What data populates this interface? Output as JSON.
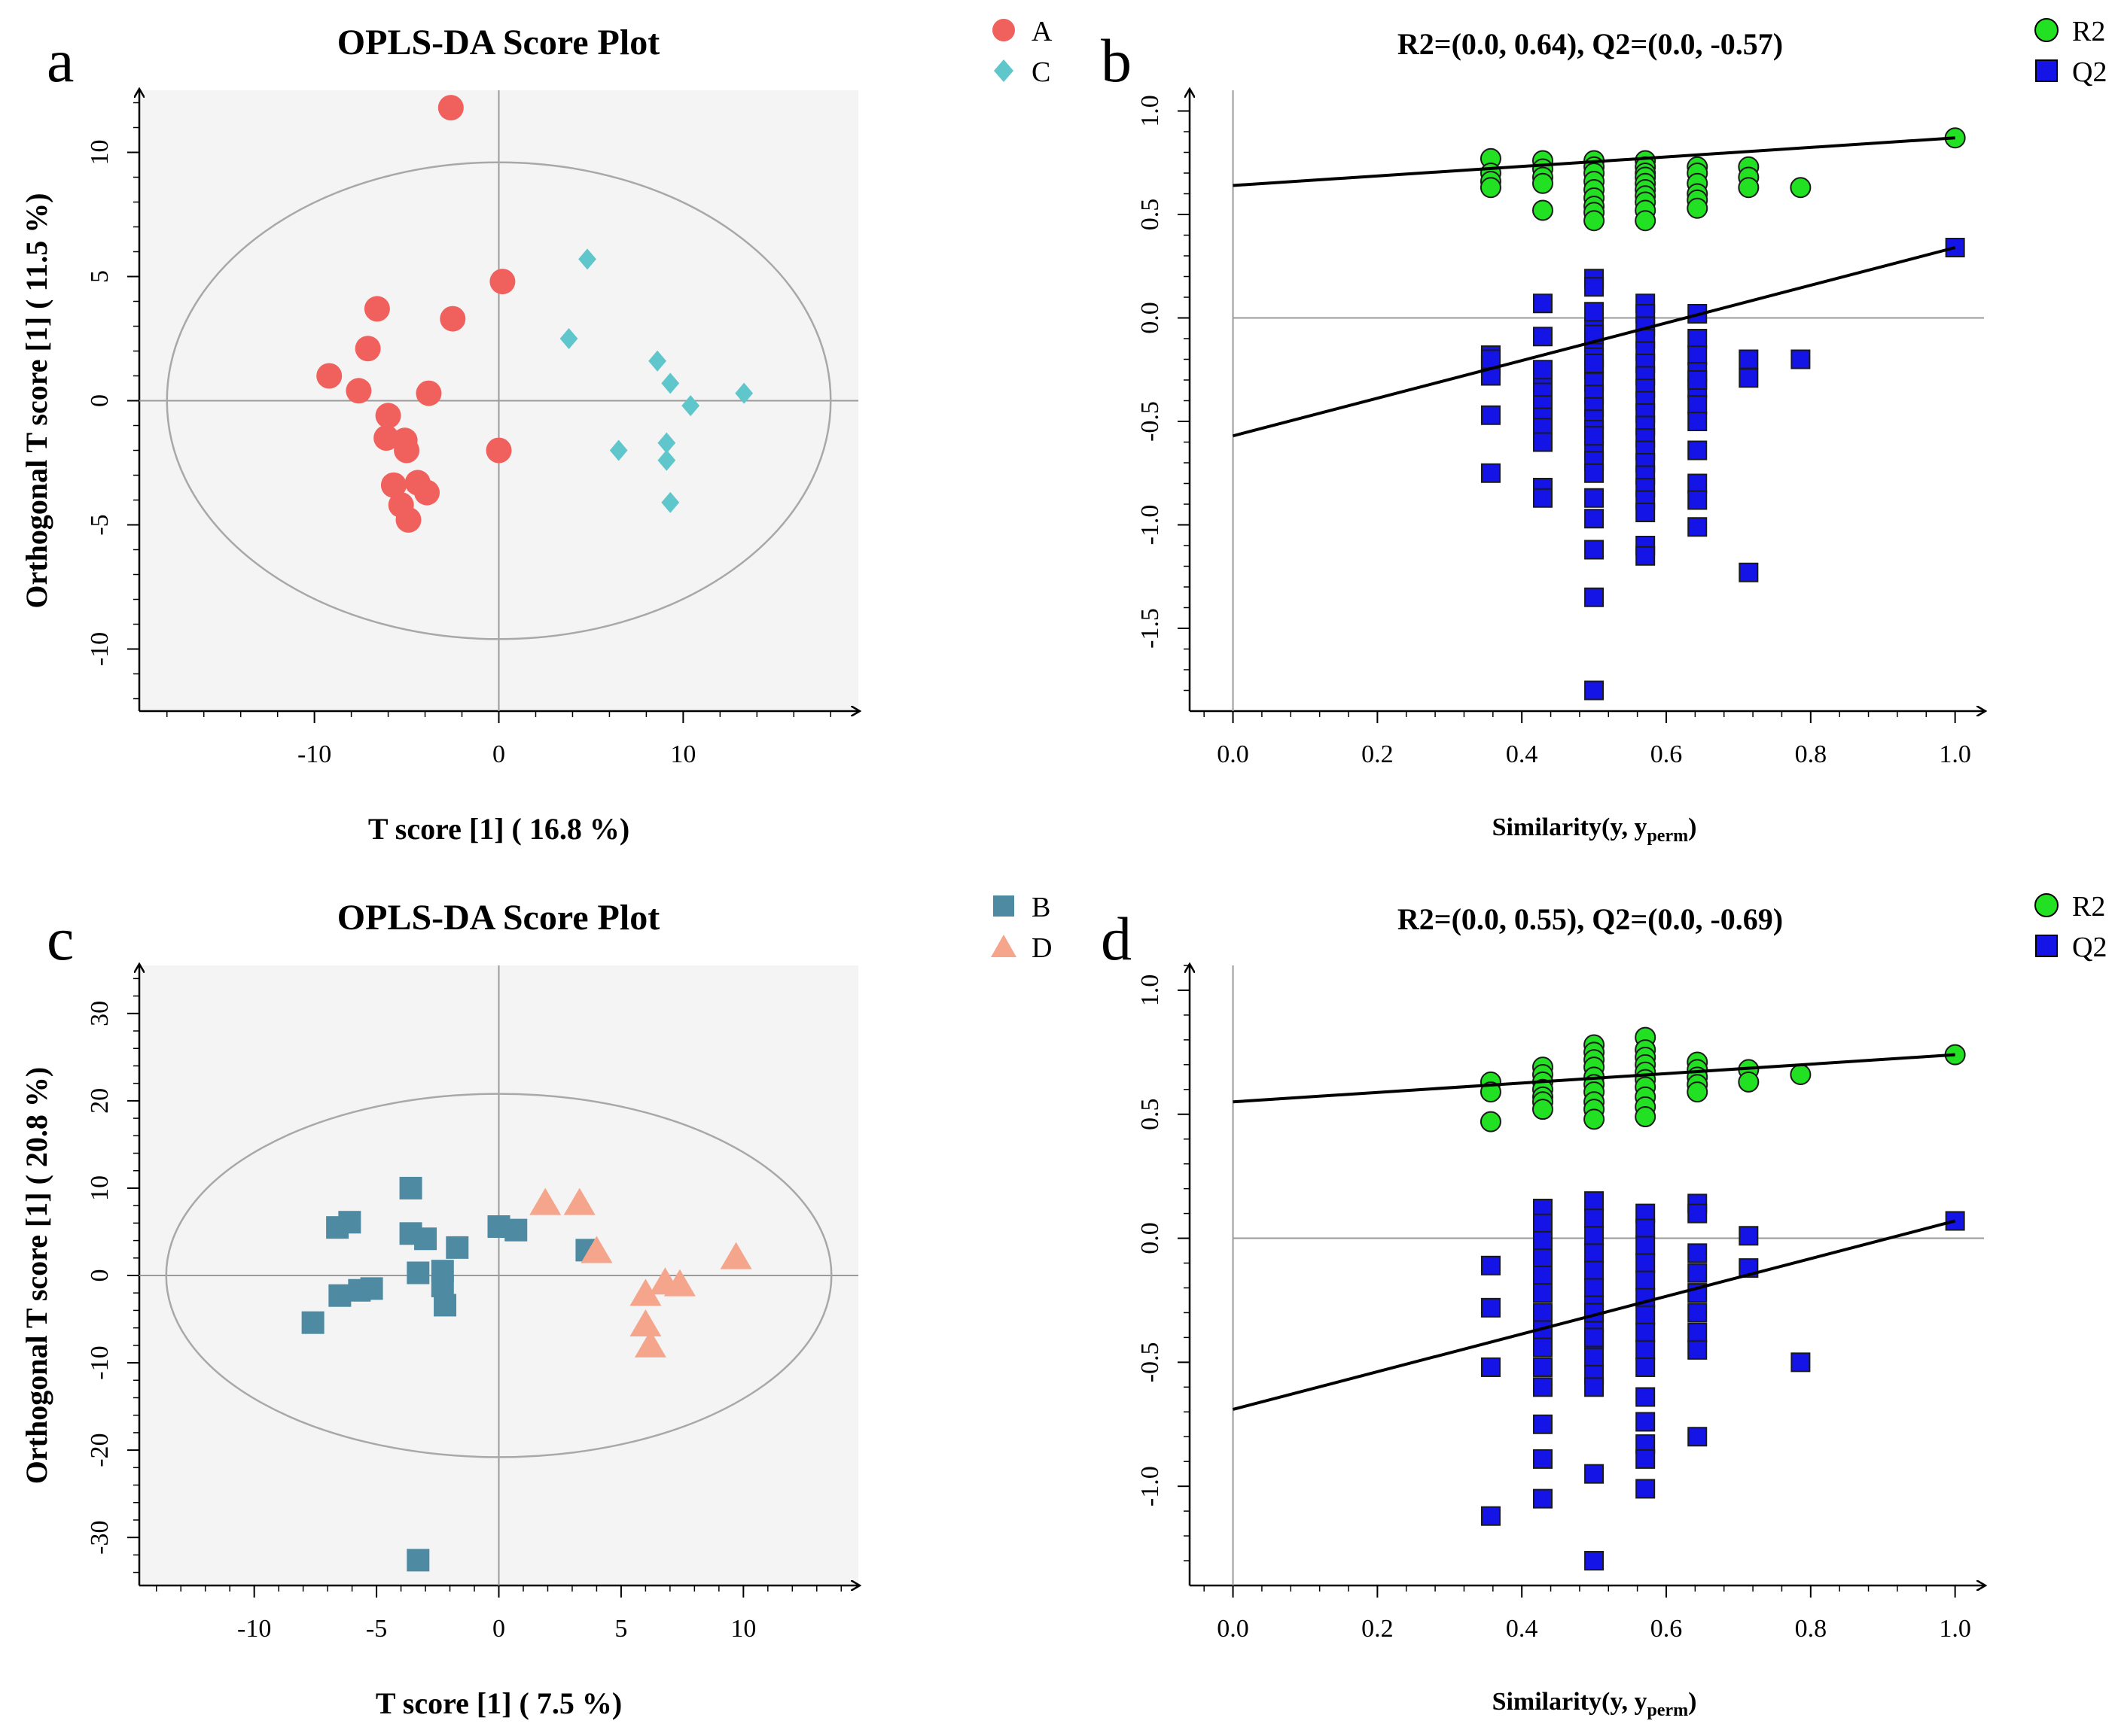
{
  "colors": {
    "A": "#f0605c",
    "C": "#5fc6cc",
    "B": "#4f8aa3",
    "D": "#f5a58c",
    "R2": "#22e022",
    "Q2": "#1414e6",
    "plot_bg": "#f4f4f4",
    "ellipse": "#a8a8a8"
  },
  "chart_data": [
    {
      "panel": "a",
      "type": "scatter",
      "title": "OPLS-DA Score Plot",
      "xlabel": "T score [1] ( 16.8 %)",
      "ylabel": "Orthogonal T score [1] ( 11.5 %)",
      "xlim": [
        -19.5,
        19.5
      ],
      "ylim": [
        -12.5,
        12.5
      ],
      "xticks": [
        -10,
        0,
        10
      ],
      "xticklabels": [
        "-10",
        "0",
        "10"
      ],
      "yticks": [
        -10,
        -5,
        0,
        5,
        10
      ],
      "yticklabels": [
        "-10",
        "-5",
        "0",
        "5",
        "10"
      ],
      "ellipse": {
        "rx": 18.0,
        "ry": 9.6
      },
      "series": [
        {
          "name": "A",
          "marker": "circle",
          "x": [
            -2.6,
            0.2,
            -6.6,
            -2.5,
            -7.1,
            -9.2,
            -7.6,
            -3.8,
            -6.0,
            -6.1,
            -5.1,
            -5.0,
            0.0,
            -5.7,
            -4.4,
            -3.9,
            -5.3,
            -4.9
          ],
          "y": [
            11.8,
            4.8,
            3.7,
            3.3,
            2.1,
            1.0,
            0.4,
            0.3,
            -0.6,
            -1.5,
            -1.6,
            -2.0,
            -2.0,
            -3.4,
            -3.3,
            -3.7,
            -4.2,
            -4.8
          ]
        },
        {
          "name": "C",
          "marker": "diamond",
          "x": [
            4.8,
            3.8,
            8.6,
            9.3,
            10.4,
            13.3,
            6.5,
            9.1,
            9.1,
            9.3
          ],
          "y": [
            5.7,
            2.5,
            1.6,
            0.7,
            -0.2,
            0.3,
            -2.0,
            -1.7,
            -2.4,
            -4.1
          ]
        }
      ]
    },
    {
      "panel": "b",
      "type": "scatter",
      "title": "R2=(0.0, 0.64), Q2=(0.0, -0.57)",
      "xlabel": "Similarity(y, y",
      "xlabel_sub": "perm",
      "xlabel_end": ")",
      "ylabel": "",
      "xlim": [
        -0.06,
        1.04
      ],
      "ylim": [
        -1.9,
        1.1
      ],
      "xticks": [
        0.0,
        0.2,
        0.4,
        0.6,
        0.8,
        1.0
      ],
      "xticklabels": [
        "0.0",
        "0.2",
        "0.4",
        "0.6",
        "0.8",
        "1.0"
      ],
      "yticks": [
        -1.5,
        -1.0,
        -0.5,
        0.0,
        0.5,
        1.0
      ],
      "yticklabels": [
        "-1.5",
        "-1.0",
        "-0.5",
        "0.0",
        "0.5",
        "1.0"
      ],
      "zero_line": 0.0,
      "fit_lines": [
        {
          "series": "R2",
          "x": [
            0.0,
            1.0
          ],
          "y": [
            0.64,
            0.87
          ]
        },
        {
          "series": "Q2",
          "x": [
            0.0,
            1.0
          ],
          "y": [
            -0.57,
            0.34
          ]
        }
      ],
      "series": [
        {
          "name": "R2",
          "marker": "circle",
          "x": [
            0.357,
            0.357,
            0.357,
            0.357,
            0.429,
            0.429,
            0.429,
            0.429,
            0.429,
            0.5,
            0.5,
            0.5,
            0.5,
            0.5,
            0.5,
            0.5,
            0.5,
            0.5,
            0.571,
            0.571,
            0.571,
            0.571,
            0.571,
            0.571,
            0.571,
            0.571,
            0.571,
            0.571,
            0.643,
            0.643,
            0.643,
            0.643,
            0.643,
            0.643,
            0.714,
            0.714,
            0.714,
            0.786,
            1.0
          ],
          "y": [
            0.77,
            0.7,
            0.66,
            0.63,
            0.76,
            0.72,
            0.68,
            0.65,
            0.52,
            0.76,
            0.73,
            0.7,
            0.66,
            0.62,
            0.58,
            0.54,
            0.51,
            0.47,
            0.76,
            0.73,
            0.7,
            0.68,
            0.65,
            0.62,
            0.59,
            0.56,
            0.52,
            0.47,
            0.73,
            0.7,
            0.65,
            0.6,
            0.57,
            0.53,
            0.73,
            0.68,
            0.63,
            0.63,
            0.87
          ]
        },
        {
          "name": "Q2",
          "marker": "square",
          "x": [
            0.357,
            0.357,
            0.357,
            0.357,
            0.357,
            0.357,
            0.429,
            0.429,
            0.429,
            0.429,
            0.429,
            0.429,
            0.429,
            0.429,
            0.429,
            0.429,
            0.429,
            0.5,
            0.5,
            0.5,
            0.5,
            0.5,
            0.5,
            0.5,
            0.5,
            0.5,
            0.5,
            0.5,
            0.5,
            0.5,
            0.5,
            0.5,
            0.5,
            0.5,
            0.5,
            0.5,
            0.5,
            0.5,
            0.5,
            0.5,
            0.571,
            0.571,
            0.571,
            0.571,
            0.571,
            0.571,
            0.571,
            0.571,
            0.571,
            0.571,
            0.571,
            0.571,
            0.571,
            0.571,
            0.571,
            0.571,
            0.571,
            0.571,
            0.571,
            0.571,
            0.643,
            0.643,
            0.643,
            0.643,
            0.643,
            0.643,
            0.643,
            0.643,
            0.643,
            0.643,
            0.643,
            0.643,
            0.714,
            0.714,
            0.714,
            0.786,
            1.0
          ],
          "y": [
            -0.18,
            -0.23,
            -0.28,
            -0.47,
            -0.75,
            -0.2,
            0.07,
            -0.09,
            -0.3,
            -0.36,
            -0.42,
            -0.48,
            -0.53,
            -0.6,
            -0.82,
            -0.87,
            -0.25,
            0.19,
            0.15,
            -0.05,
            -0.12,
            -0.19,
            -0.25,
            -0.31,
            -0.37,
            -0.43,
            -0.49,
            -0.54,
            -0.64,
            -0.69,
            -0.75,
            -0.87,
            -0.97,
            -1.12,
            -1.35,
            -1.8,
            -0.57,
            0.03,
            -0.08,
            -0.22,
            0.07,
            0.02,
            -0.04,
            -0.1,
            -0.16,
            -0.22,
            -0.28,
            -0.34,
            -0.4,
            -0.46,
            -0.52,
            -0.58,
            -0.64,
            -0.7,
            -0.76,
            -0.82,
            -0.88,
            -0.94,
            -1.1,
            -1.15,
            0.02,
            -0.1,
            -0.18,
            -0.26,
            -0.34,
            -0.42,
            -0.5,
            -0.64,
            -0.8,
            -0.88,
            -1.01,
            -0.3,
            -0.2,
            -0.29,
            -1.23,
            -0.2,
            0.34
          ]
        }
      ]
    },
    {
      "panel": "c",
      "type": "scatter",
      "title": "OPLS-DA Score Plot",
      "xlabel": "T score [1] ( 7.5 %)",
      "ylabel": "Orthogonal T score [1] ( 20.8 %)",
      "xlim": [
        -14.7,
        14.7
      ],
      "ylim": [
        -35.5,
        35.5
      ],
      "xticks": [
        -10,
        -5,
        0,
        5,
        10
      ],
      "xticklabels": [
        "-10",
        "-5",
        "0",
        "5",
        "10"
      ],
      "yticks": [
        -30,
        -20,
        -10,
        0,
        10,
        20,
        30
      ],
      "yticklabels": [
        "-30",
        "-20",
        "-10",
        "0",
        "10",
        "20",
        "30"
      ],
      "ellipse": {
        "rx": 13.6,
        "ry": 20.8
      },
      "series": [
        {
          "name": "B",
          "marker": "square",
          "x": [
            -3.6,
            -6.6,
            -6.1,
            -3.6,
            -3.0,
            0.0,
            0.7,
            -1.7,
            3.6,
            -3.3,
            -2.3,
            -2.3,
            -5.2,
            -5.7,
            -6.5,
            -7.6,
            -2.2,
            -3.3
          ],
          "y": [
            10.0,
            5.5,
            6.1,
            4.8,
            4.2,
            5.6,
            5.2,
            3.2,
            2.9,
            0.3,
            0.5,
            -1.2,
            -1.5,
            -1.7,
            -2.3,
            -5.4,
            -3.4,
            -32.6
          ]
        },
        {
          "name": "D",
          "marker": "triangle",
          "x": [
            1.9,
            3.3,
            4.0,
            9.7,
            6.8,
            7.4,
            6.0,
            6.0,
            6.2
          ],
          "y": [
            8.3,
            8.3,
            2.8,
            2.1,
            -0.8,
            -1.0,
            -2.1,
            -5.6,
            -8.0
          ]
        }
      ]
    },
    {
      "panel": "d",
      "type": "scatter",
      "title": "R2=(0.0, 0.55), Q2=(0.0, -0.69)",
      "xlabel": "Similarity(y, y",
      "xlabel_sub": "perm",
      "xlabel_end": ")",
      "ylabel": "",
      "xlim": [
        -0.06,
        1.04
      ],
      "ylim": [
        -1.4,
        1.1
      ],
      "xticks": [
        0.0,
        0.2,
        0.4,
        0.6,
        0.8,
        1.0
      ],
      "xticklabels": [
        "0.0",
        "0.2",
        "0.4",
        "0.6",
        "0.8",
        "1.0"
      ],
      "yticks": [
        -1.0,
        -0.5,
        0.0,
        0.5,
        1.0
      ],
      "yticklabels": [
        "-1.0",
        "-0.5",
        "0.0",
        "0.5",
        "1.0"
      ],
      "zero_line": 0.0,
      "fit_lines": [
        {
          "series": "R2",
          "x": [
            0.0,
            1.0
          ],
          "y": [
            0.55,
            0.74
          ]
        },
        {
          "series": "Q2",
          "x": [
            0.0,
            1.0
          ],
          "y": [
            -0.69,
            0.07
          ]
        }
      ],
      "series": [
        {
          "name": "R2",
          "marker": "circle",
          "x": [
            0.357,
            0.357,
            0.357,
            0.429,
            0.429,
            0.429,
            0.429,
            0.429,
            0.429,
            0.429,
            0.5,
            0.5,
            0.5,
            0.5,
            0.5,
            0.5,
            0.5,
            0.5,
            0.5,
            0.5,
            0.571,
            0.571,
            0.571,
            0.571,
            0.571,
            0.571,
            0.571,
            0.571,
            0.571,
            0.571,
            0.643,
            0.643,
            0.643,
            0.643,
            0.643,
            0.714,
            0.714,
            0.786,
            1.0
          ],
          "y": [
            0.63,
            0.59,
            0.47,
            0.69,
            0.66,
            0.63,
            0.6,
            0.57,
            0.55,
            0.52,
            0.78,
            0.75,
            0.72,
            0.69,
            0.65,
            0.62,
            0.59,
            0.55,
            0.52,
            0.48,
            0.81,
            0.76,
            0.73,
            0.7,
            0.67,
            0.64,
            0.61,
            0.57,
            0.53,
            0.49,
            0.71,
            0.68,
            0.65,
            0.62,
            0.59,
            0.68,
            0.63,
            0.66,
            0.74
          ]
        },
        {
          "name": "Q2",
          "marker": "square",
          "x": [
            0.357,
            0.357,
            0.357,
            0.357,
            0.429,
            0.429,
            0.429,
            0.429,
            0.429,
            0.429,
            0.429,
            0.429,
            0.429,
            0.429,
            0.429,
            0.429,
            0.429,
            0.429,
            0.5,
            0.5,
            0.5,
            0.5,
            0.5,
            0.5,
            0.5,
            0.5,
            0.5,
            0.5,
            0.5,
            0.5,
            0.5,
            0.5,
            0.5,
            0.5,
            0.571,
            0.571,
            0.571,
            0.571,
            0.571,
            0.571,
            0.571,
            0.571,
            0.571,
            0.571,
            0.571,
            0.571,
            0.571,
            0.571,
            0.571,
            0.643,
            0.643,
            0.643,
            0.643,
            0.643,
            0.643,
            0.643,
            0.643,
            0.643,
            0.714,
            0.714,
            0.786,
            1.0
          ],
          "y": [
            -0.11,
            -0.28,
            -0.52,
            -1.12,
            0.12,
            0.06,
            -0.01,
            -0.08,
            -0.15,
            -0.22,
            -0.3,
            -0.37,
            -0.44,
            -0.52,
            -0.75,
            -0.89,
            -1.05,
            -0.6,
            0.15,
            0.08,
            0.01,
            -0.06,
            -0.13,
            -0.2,
            -0.27,
            -0.34,
            -0.41,
            -0.48,
            -0.55,
            -0.6,
            -0.95,
            -1.3,
            -0.4,
            -0.3,
            0.1,
            0.04,
            -0.03,
            -0.1,
            -0.17,
            -0.24,
            -0.31,
            -0.38,
            -0.45,
            -0.52,
            -0.64,
            -0.74,
            -0.83,
            -0.89,
            -1.01,
            0.14,
            0.1,
            -0.06,
            -0.14,
            -0.22,
            -0.3,
            -0.38,
            -0.45,
            -0.8,
            0.01,
            -0.12,
            -0.5,
            0.07
          ]
        }
      ]
    }
  ],
  "panels": [
    {
      "letter": "a",
      "legend": [
        "A",
        "C"
      ]
    },
    {
      "letter": "b",
      "legend": [
        "R2",
        "Q2"
      ]
    },
    {
      "letter": "c",
      "legend": [
        "B",
        "D"
      ]
    },
    {
      "letter": "d",
      "legend": [
        "R2",
        "Q2"
      ]
    }
  ]
}
